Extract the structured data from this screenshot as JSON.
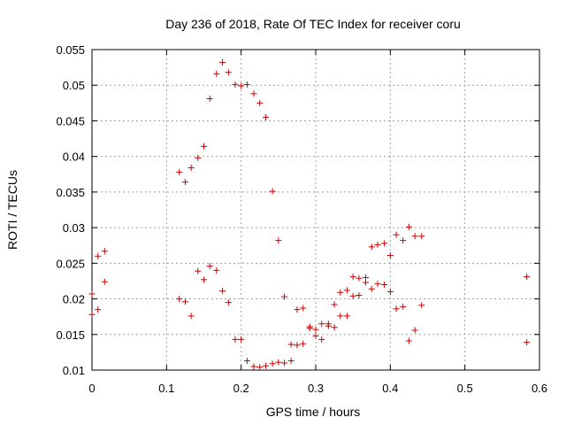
{
  "chart_data": {
    "type": "scatter",
    "title": "Day 236 of 2018, Rate Of TEC Index for receiver coru",
    "xlabel": "GPS time / hours",
    "ylabel": "ROTI / TECUs",
    "xlim": [
      0,
      0.6
    ],
    "ylim": [
      0.01,
      0.055
    ],
    "grid": true,
    "marker": "+",
    "series_color": "#cc0000",
    "xticks": [
      {
        "value": 0,
        "label": "0"
      },
      {
        "value": 0.1,
        "label": "0.1"
      },
      {
        "value": 0.2,
        "label": "0.2"
      },
      {
        "value": 0.3,
        "label": "0.3"
      },
      {
        "value": 0.4,
        "label": "0.4"
      },
      {
        "value": 0.5,
        "label": "0.5"
      },
      {
        "value": 0.6,
        "label": "0.6"
      }
    ],
    "yticks": [
      {
        "value": 0.01,
        "label": "0.01"
      },
      {
        "value": 0.015,
        "label": "0.015"
      },
      {
        "value": 0.02,
        "label": "0.02"
      },
      {
        "value": 0.025,
        "label": "0.025"
      },
      {
        "value": 0.03,
        "label": "0.03"
      },
      {
        "value": 0.035,
        "label": "0.035"
      },
      {
        "value": 0.04,
        "label": "0.04"
      },
      {
        "value": 0.045,
        "label": "0.045"
      },
      {
        "value": 0.05,
        "label": "0.05"
      },
      {
        "value": 0.055,
        "label": "0.055"
      }
    ],
    "points": [
      [
        0.0,
        0.0207
      ],
      [
        0.0,
        0.0178
      ],
      [
        0.008,
        0.0185
      ],
      [
        0.008,
        0.026
      ],
      [
        0.017,
        0.0267
      ],
      [
        0.017,
        0.0224
      ],
      [
        0.117,
        0.0378
      ],
      [
        0.117,
        0.02
      ],
      [
        0.125,
        0.0364
      ],
      [
        0.125,
        0.0196
      ],
      [
        0.133,
        0.0384
      ],
      [
        0.133,
        0.0176
      ],
      [
        0.142,
        0.0398
      ],
      [
        0.142,
        0.0239
      ],
      [
        0.15,
        0.0414
      ],
      [
        0.15,
        0.0227
      ],
      [
        0.158,
        0.0481
      ],
      [
        0.158,
        0.0246
      ],
      [
        0.167,
        0.0516
      ],
      [
        0.167,
        0.024
      ],
      [
        0.175,
        0.0532
      ],
      [
        0.175,
        0.0211
      ],
      [
        0.183,
        0.0518
      ],
      [
        0.183,
        0.0195
      ],
      [
        0.192,
        0.0501
      ],
      [
        0.192,
        0.0143
      ],
      [
        0.2,
        0.0499
      ],
      [
        0.2,
        0.0143
      ],
      [
        0.208,
        0.0501
      ],
      [
        0.208,
        0.0113
      ],
      [
        0.217,
        0.0488
      ],
      [
        0.217,
        0.0105
      ],
      [
        0.225,
        0.0475
      ],
      [
        0.225,
        0.0104
      ],
      [
        0.233,
        0.0455
      ],
      [
        0.233,
        0.0106
      ],
      [
        0.242,
        0.0351
      ],
      [
        0.242,
        0.0109
      ],
      [
        0.25,
        0.0282
      ],
      [
        0.25,
        0.0111
      ],
      [
        0.258,
        0.0203
      ],
      [
        0.258,
        0.011
      ],
      [
        0.267,
        0.0136
      ],
      [
        0.267,
        0.0113
      ],
      [
        0.275,
        0.0185
      ],
      [
        0.275,
        0.0135
      ],
      [
        0.283,
        0.0187
      ],
      [
        0.283,
        0.0137
      ],
      [
        0.292,
        0.0161
      ],
      [
        0.292,
        0.0159
      ],
      [
        0.3,
        0.0157
      ],
      [
        0.3,
        0.0148
      ],
      [
        0.308,
        0.0165
      ],
      [
        0.308,
        0.0143
      ],
      [
        0.317,
        0.0165
      ],
      [
        0.317,
        0.0162
      ],
      [
        0.325,
        0.0192
      ],
      [
        0.325,
        0.016
      ],
      [
        0.333,
        0.0209
      ],
      [
        0.333,
        0.0176
      ],
      [
        0.342,
        0.0212
      ],
      [
        0.342,
        0.0176
      ],
      [
        0.35,
        0.0231
      ],
      [
        0.35,
        0.0204
      ],
      [
        0.358,
        0.0229
      ],
      [
        0.358,
        0.0205
      ],
      [
        0.367,
        0.023
      ],
      [
        0.367,
        0.0223
      ],
      [
        0.375,
        0.0273
      ],
      [
        0.375,
        0.0214
      ],
      [
        0.383,
        0.0276
      ],
      [
        0.383,
        0.0221
      ],
      [
        0.392,
        0.0278
      ],
      [
        0.392,
        0.022
      ],
      [
        0.4,
        0.0261
      ],
      [
        0.4,
        0.021
      ],
      [
        0.408,
        0.029
      ],
      [
        0.408,
        0.0186
      ],
      [
        0.417,
        0.0282
      ],
      [
        0.417,
        0.0189
      ],
      [
        0.425,
        0.0301
      ],
      [
        0.425,
        0.0141
      ],
      [
        0.433,
        0.0288
      ],
      [
        0.433,
        0.0156
      ],
      [
        0.442,
        0.0288
      ],
      [
        0.442,
        0.0191
      ],
      [
        0.583,
        0.0231
      ],
      [
        0.583,
        0.0139
      ]
    ]
  }
}
